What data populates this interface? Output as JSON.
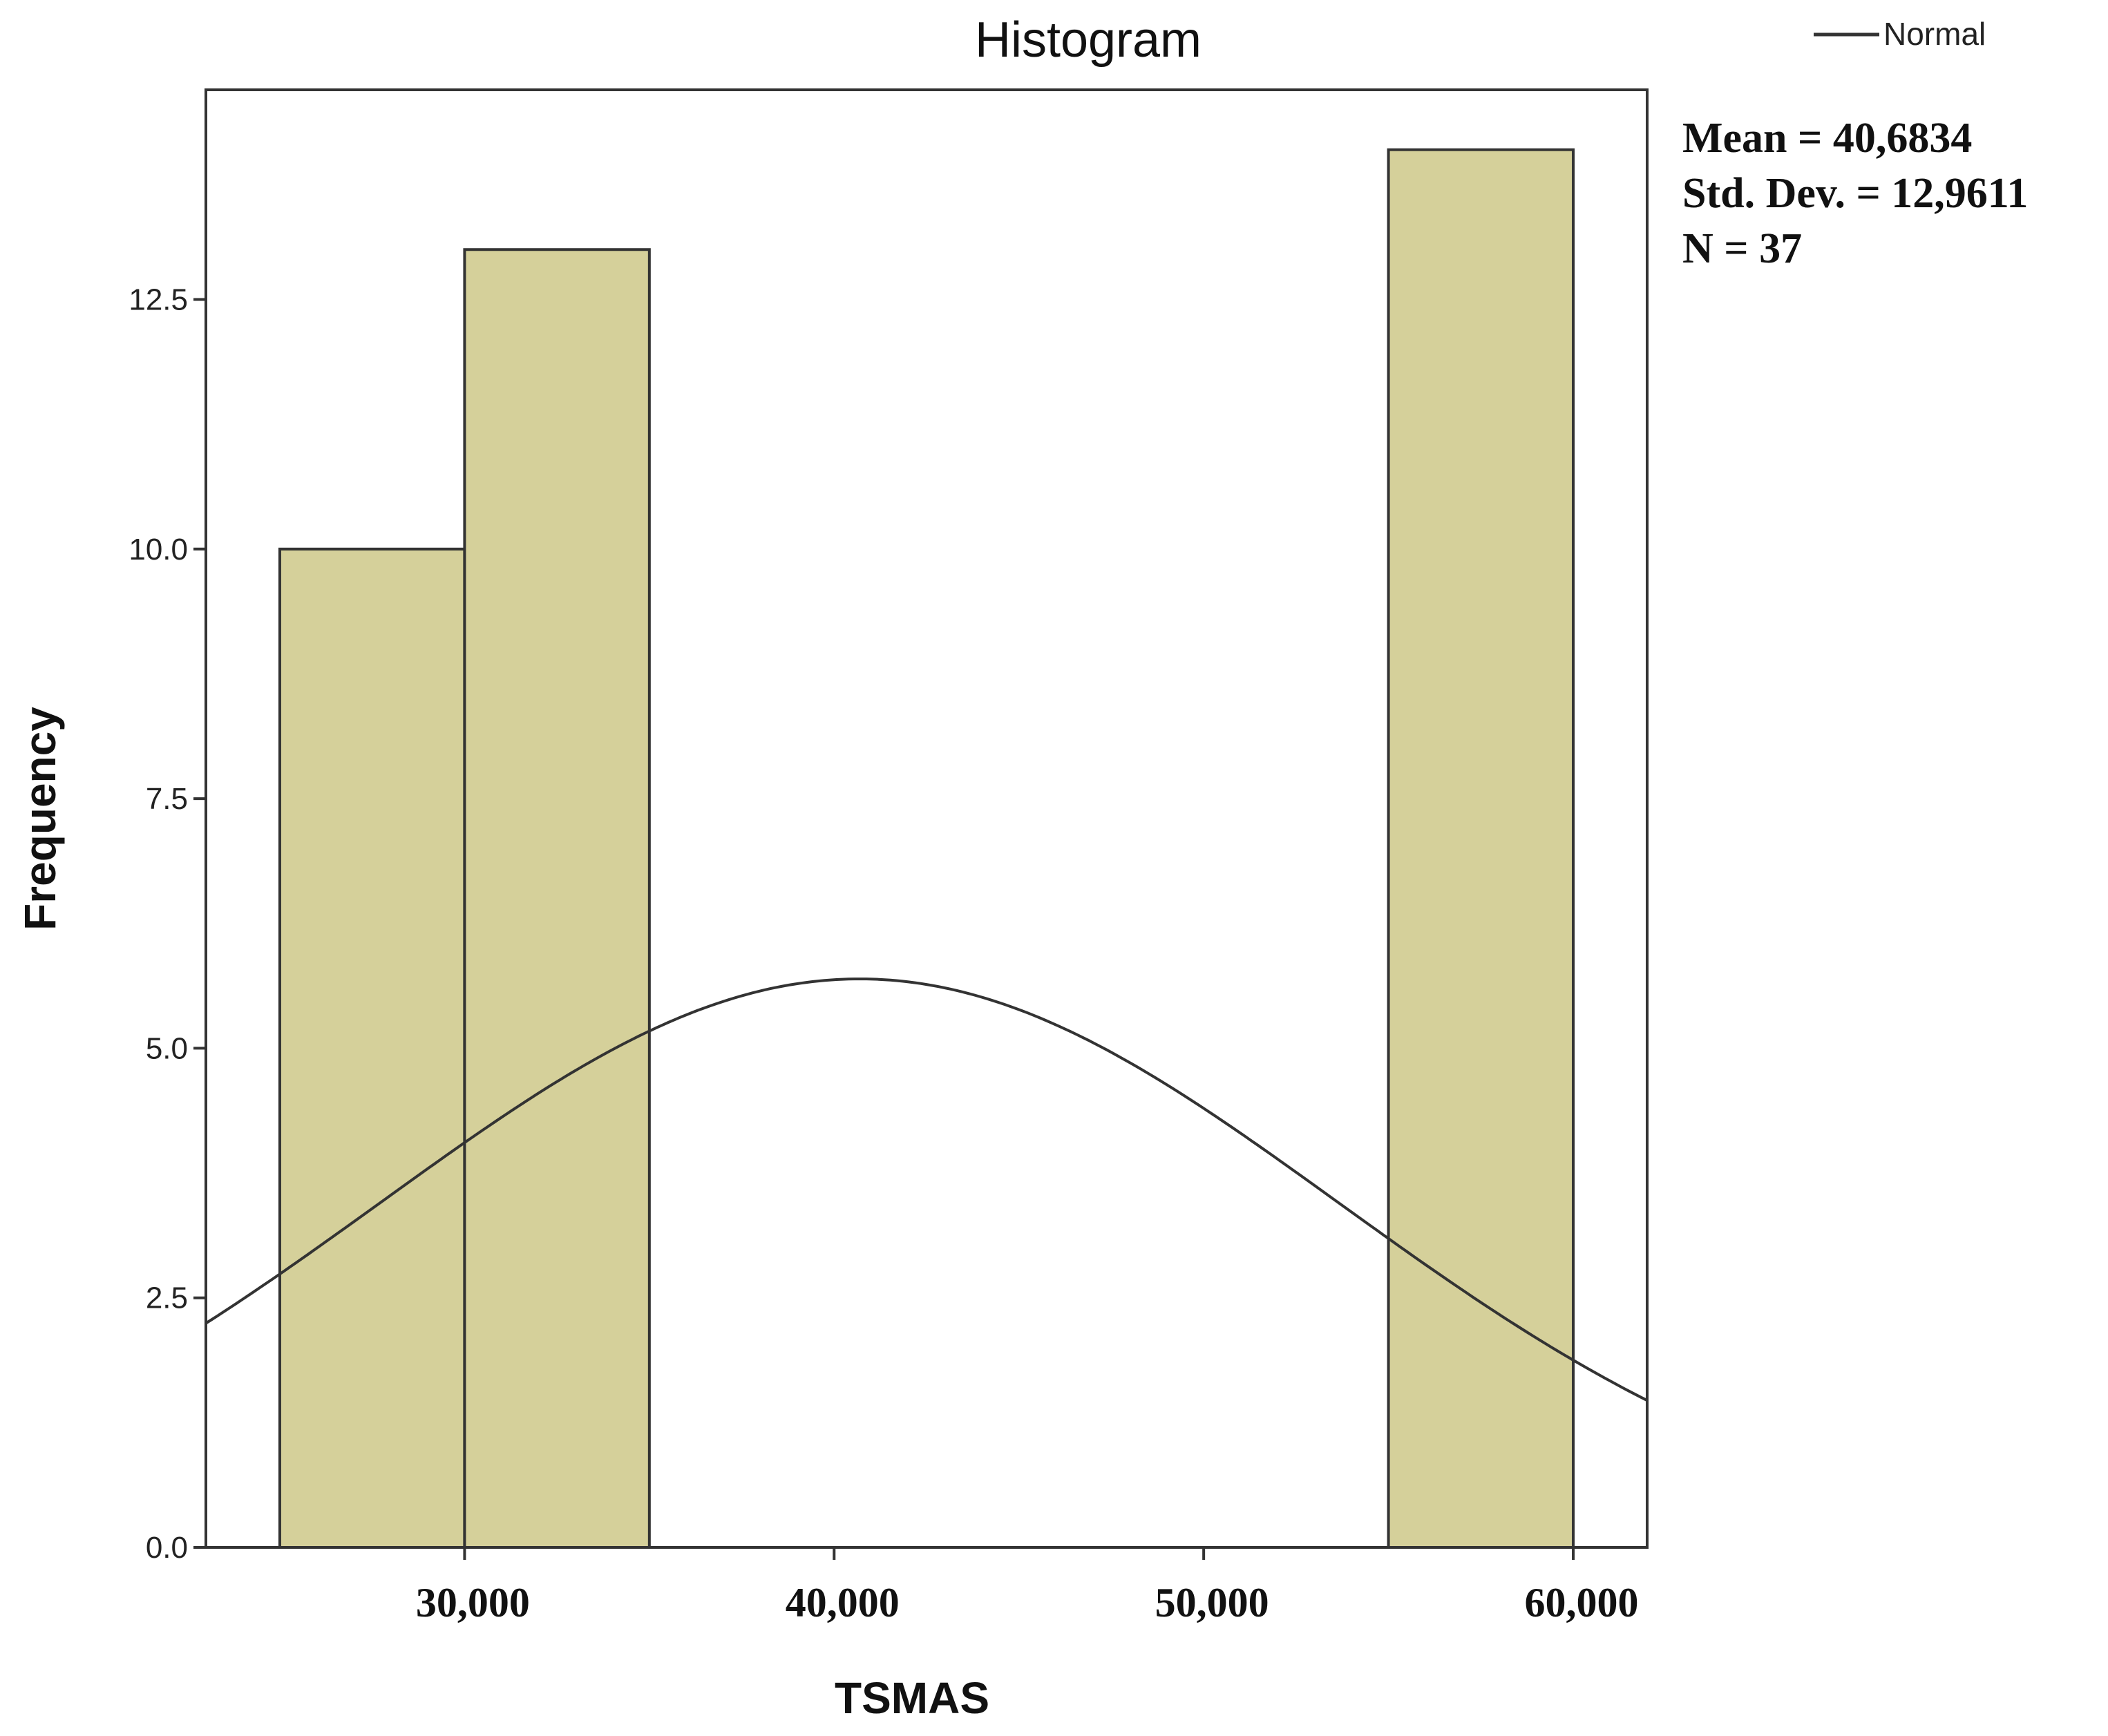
{
  "chart_data": {
    "type": "bar",
    "title": "Histogram",
    "xlabel": "TSMAS",
    "ylabel": "Frequency",
    "xlim": [
      23000,
      62000
    ],
    "ylim": [
      0,
      14.6
    ],
    "x_ticks": [
      {
        "value": 30000,
        "label": "30,000"
      },
      {
        "value": 40000,
        "label": "40,000"
      },
      {
        "value": 50000,
        "label": "50,000"
      },
      {
        "value": 60000,
        "label": "60,000"
      }
    ],
    "y_ticks": [
      {
        "value": 0,
        "label": "0.0"
      },
      {
        "value": 2.5,
        "label": "2.5"
      },
      {
        "value": 5,
        "label": "5.0"
      },
      {
        "value": 7.5,
        "label": "7.5"
      },
      {
        "value": 10,
        "label": "10.0"
      },
      {
        "value": 12.5,
        "label": "12.5"
      }
    ],
    "bins": [
      {
        "start": 25000,
        "end": 30000,
        "count": 10
      },
      {
        "start": 30000,
        "end": 35000,
        "count": 13
      },
      {
        "start": 55000,
        "end": 60000,
        "count": 14
      }
    ],
    "normal_curve": {
      "legend": "Normal",
      "mean": 40683.4,
      "std_dev": 12961.1,
      "n": 37,
      "bin_width": 5000
    },
    "stats": [
      "Mean = 40,6834",
      "Std. Dev. = 12,9611",
      "N = 37"
    ],
    "grid": false,
    "legend_position": "top-right",
    "colors": {
      "bar_fill": "#d5d09a",
      "bar_stroke": "#333333",
      "curve": "#333333",
      "axis": "#333333"
    }
  }
}
